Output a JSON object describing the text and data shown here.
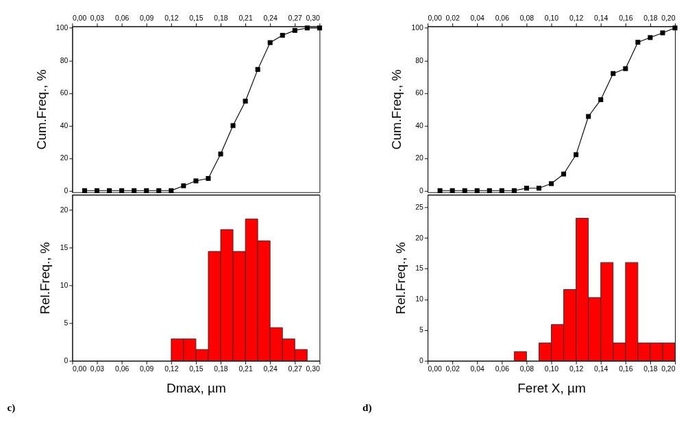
{
  "chart_data": [
    {
      "type": "line",
      "ylabel": "Cum.Freq., %",
      "x2lim": [
        0,
        0.3
      ],
      "x2ticks": [
        {
          "value": 0,
          "label": "0,00"
        },
        {
          "value": 0.03,
          "label": "0,03"
        },
        {
          "value": 0.06,
          "label": "0,06"
        },
        {
          "value": 0.09,
          "label": "0,09"
        },
        {
          "value": 0.12,
          "label": "0,12"
        },
        {
          "value": 0.15,
          "label": "0,15"
        },
        {
          "value": 0.18,
          "label": "0,18"
        },
        {
          "value": 0.21,
          "label": "0,21"
        },
        {
          "value": 0.24,
          "label": "0,24"
        },
        {
          "value": 0.27,
          "label": "0,27"
        },
        {
          "value": 0.3,
          "label": "0,30"
        }
      ],
      "ylim": [
        -1,
        101
      ],
      "yticks": [
        0,
        20,
        40,
        60,
        80,
        100
      ],
      "marker": "square",
      "line_style": "solid",
      "x": [
        0.015,
        0.03,
        0.045,
        0.06,
        0.075,
        0.09,
        0.105,
        0.12,
        0.135,
        0.15,
        0.165,
        0.18,
        0.195,
        0.21,
        0.225,
        0.24,
        0.255,
        0.27,
        0.285,
        0.3
      ],
      "series": [
        {
          "color": "#000000",
          "axis": "x2",
          "values": [
            0,
            0,
            0,
            0,
            0,
            0,
            0,
            0,
            3,
            6,
            7.5,
            22.5,
            40,
            55,
            74.5,
            91,
            95.5,
            98.5,
            100,
            100
          ]
        }
      ]
    },
    {
      "type": "histogram",
      "ylabel": "Rel.Freq., %",
      "xlabel": "Dmax, µm",
      "xlim": [
        0,
        0.3
      ],
      "xticks": [
        {
          "value": 0,
          "label": "0,00"
        },
        {
          "value": 0.03,
          "label": "0,03"
        },
        {
          "value": 0.06,
          "label": "0,06"
        },
        {
          "value": 0.09,
          "label": "0,09"
        },
        {
          "value": 0.12,
          "label": "0,12"
        },
        {
          "value": 0.15,
          "label": "0,15"
        },
        {
          "value": 0.18,
          "label": "0,18"
        },
        {
          "value": 0.21,
          "label": "0,21"
        },
        {
          "value": 0.24,
          "label": "0,24"
        },
        {
          "value": 0.27,
          "label": "0,27"
        },
        {
          "value": 0.3,
          "label": "0,30"
        }
      ],
      "ylim": [
        0,
        22
      ],
      "yticks": [
        0,
        5,
        10,
        15,
        20
      ],
      "color": "#ff0000",
      "bins": [
        0.12,
        0.135,
        0.15,
        0.165,
        0.18,
        0.195,
        0.21,
        0.225,
        0.24,
        0.255,
        0.27,
        0.285
      ],
      "values": [
        2.9,
        2.9,
        1.5,
        14.5,
        17.4,
        14.5,
        18.8,
        15.9,
        4.4,
        2.9,
        1.5
      ],
      "annotations": [
        "c)"
      ]
    },
    {
      "type": "line",
      "ylabel": "Cum.Freq., %",
      "x2lim": [
        0,
        0.2
      ],
      "x2ticks": [
        {
          "value": 0,
          "label": "0,00"
        },
        {
          "value": 0.02,
          "label": "0,02"
        },
        {
          "value": 0.04,
          "label": "0,04"
        },
        {
          "value": 0.06,
          "label": "0,06"
        },
        {
          "value": 0.08,
          "label": "0,08"
        },
        {
          "value": 0.1,
          "label": "0,10"
        },
        {
          "value": 0.12,
          "label": "0,12"
        },
        {
          "value": 0.14,
          "label": "0,14"
        },
        {
          "value": 0.16,
          "label": "0,16"
        },
        {
          "value": 0.18,
          "label": "0,18"
        },
        {
          "value": 0.2,
          "label": "0,20"
        }
      ],
      "ylim": [
        -1,
        101
      ],
      "yticks": [
        0,
        20,
        40,
        60,
        80,
        100
      ],
      "marker": "square",
      "line_style": "solid",
      "x": [
        0.01,
        0.02,
        0.03,
        0.04,
        0.05,
        0.06,
        0.07,
        0.08,
        0.09,
        0.1,
        0.11,
        0.12,
        0.13,
        0.14,
        0.15,
        0.16,
        0.17,
        0.18,
        0.19,
        0.2
      ],
      "series": [
        {
          "color": "#000000",
          "axis": "x2",
          "values": [
            0,
            0,
            0,
            0,
            0,
            0,
            0,
            1.5,
            1.5,
            4.3,
            10.2,
            22.1,
            45.6,
            55.9,
            72,
            75,
            91.2,
            94.1,
            97,
            100
          ]
        }
      ]
    },
    {
      "type": "histogram",
      "ylabel": "Rel.Freq., %",
      "xlabel": "Feret X, µm",
      "xlim": [
        0,
        0.2
      ],
      "xticks": [
        {
          "value": 0,
          "label": "0,00"
        },
        {
          "value": 0.02,
          "label": "0,02"
        },
        {
          "value": 0.04,
          "label": "0,04"
        },
        {
          "value": 0.06,
          "label": "0,06"
        },
        {
          "value": 0.08,
          "label": "0,08"
        },
        {
          "value": 0.1,
          "label": "0,10"
        },
        {
          "value": 0.12,
          "label": "0,12"
        },
        {
          "value": 0.14,
          "label": "0,14"
        },
        {
          "value": 0.16,
          "label": "0,16"
        },
        {
          "value": 0.18,
          "label": "0,18"
        },
        {
          "value": 0.2,
          "label": "0,20"
        }
      ],
      "ylim": [
        0,
        27
      ],
      "yticks": [
        0,
        5,
        10,
        15,
        20,
        25
      ],
      "color": "#ff0000",
      "bins": [
        0.07,
        0.08,
        0.09,
        0.1,
        0.11,
        0.12,
        0.13,
        0.14,
        0.15,
        0.16,
        0.17,
        0.18,
        0.19,
        0.2
      ],
      "values": [
        1.5,
        0,
        2.9,
        5.9,
        11.6,
        23.2,
        10.3,
        16.0,
        2.9,
        16.0,
        2.9,
        2.9,
        2.9
      ],
      "annotations": [
        "d)"
      ]
    }
  ]
}
